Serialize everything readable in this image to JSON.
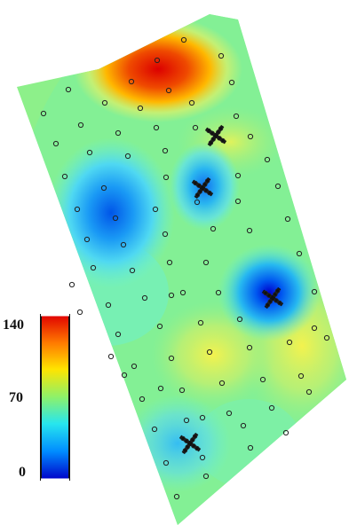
{
  "map": {
    "type": "interpolated-value-map",
    "colors": {
      "low": "#0000cc",
      "mid": "#67f0d5",
      "high": "#e80000"
    }
  },
  "legend": {
    "ticks": [
      {
        "key": "t140",
        "label": "140",
        "value": 140
      },
      {
        "key": "t70",
        "label": "70",
        "value": 70
      },
      {
        "key": "t0",
        "label": "0",
        "value": 0
      }
    ],
    "min": 0,
    "max": 140,
    "gradient_stops": [
      "#e00000",
      "#ff7a00",
      "#ffe400",
      "#8cf16b",
      "#27e6ee",
      "#008bff",
      "#0000c8"
    ]
  }
}
